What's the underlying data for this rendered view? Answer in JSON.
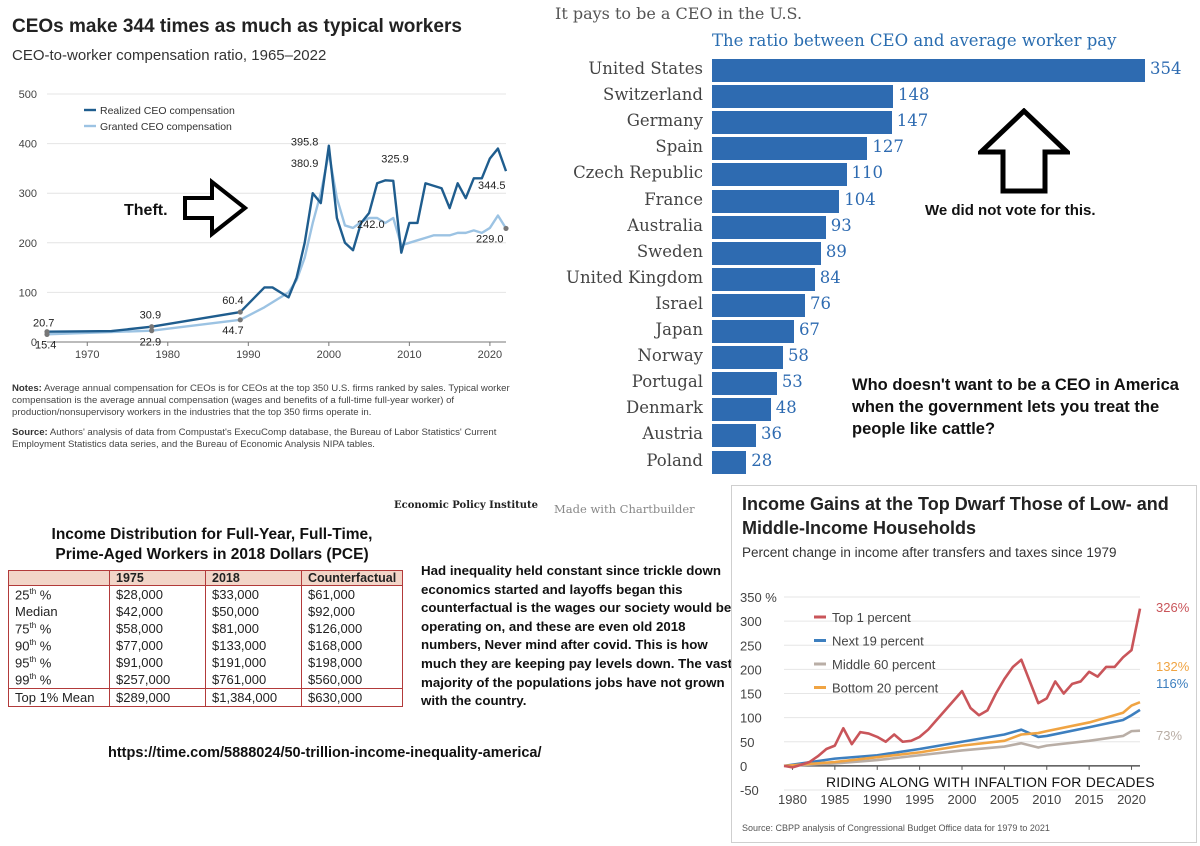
{
  "panel1": {
    "title": "CEOs make 344 times as much as typical workers",
    "subtitle": "CEO-to-worker compensation ratio, 1965–2022",
    "notes_label": "Notes:",
    "notes_text": "Average annual compensation for CEOs is for CEOs at the top 350 U.S. firms ranked by sales. Typical worker compensation is the average annual compensation (wages and benefits of a full-time full-year worker) of production/nonsupervisory workers in the industries that the top 350 firms operate in.",
    "source_label": "Source:",
    "source_text": "Authors' analysis of data from Compustat's ExecuComp database, the Bureau of Labor Statistics' Current Employment Statistics data series, and the Bureau of Economic Analysis NIPA tables.",
    "credit": "Economic Policy Institute",
    "annotation": "Theft.",
    "colors": {
      "realized": "#1f5d8e",
      "granted": "#9cc3e3"
    }
  },
  "panel2": {
    "supertitle": "It pays to be a CEO in the U.S.",
    "title": "The ratio between CEO and average worker pay",
    "credit": "Made with Chartbuilder",
    "note1": "We did not vote for this.",
    "note2": "Who doesn't want to be a CEO in America when the government lets you treat the people like cattle?",
    "bar_color": "#2e6bb1"
  },
  "panel3": {
    "title_line1": "Income Distribution for Full-Year, Full-Time,",
    "title_line2": "Prime-Aged Workers in 2018 Dollars (PCE)",
    "headers": [
      "",
      "1975",
      "2018",
      "Counterfactual"
    ],
    "rows": [
      {
        "label": "25th %",
        "v1975": "$28,000",
        "v2018": "$33,000",
        "cf": "$61,000"
      },
      {
        "label": "Median",
        "v1975": "$42,000",
        "v2018": "$50,000",
        "cf": "$92,000"
      },
      {
        "label": "75th %",
        "v1975": "$58,000",
        "v2018": "$81,000",
        "cf": "$126,000"
      },
      {
        "label": "90th %",
        "v1975": "$77,000",
        "v2018": "$133,000",
        "cf": "$168,000"
      },
      {
        "label": "95th %",
        "v1975": "$91,000",
        "v2018": "$191,000",
        "cf": "$198,000"
      },
      {
        "label": "99th %",
        "v1975": "$257,000",
        "v2018": "$761,000",
        "cf": "$560,000"
      },
      {
        "label": "Top 1% Mean",
        "v1975": "$289,000",
        "v2018": "$1,384,000",
        "cf": "$630,000"
      }
    ],
    "commentary": "Had inequality held constant since trickle down economics started and layoffs began this counterfactual is the wages our society would be operating on, and these are even old 2018 numbers, Never mind after covid. This is how much they are keeping pay levels down. The vast majority of the populations jobs have not grown with the country.",
    "link": "https://time.com/5888024/50-trillion-income-inequality-america/"
  },
  "panel4": {
    "title": "Income Gains at the Top Dwarf Those of Low- and Middle-Income Households",
    "subtitle": "Percent change in income after transfers and taxes since 1979",
    "source": "Source: CBPP analysis of Congressional Budget Office data for 1979 to 2021",
    "annotation": "RIDING ALONG WITH INFALTION FOR DECADES"
  },
  "chart_data": [
    {
      "type": "line",
      "title": "CEOs make 344 times as much as typical workers",
      "subtitle": "CEO-to-worker compensation ratio, 1965–2022",
      "xlim": [
        1965,
        2022
      ],
      "ylim": [
        0,
        500
      ],
      "x_ticks": [
        1970,
        1980,
        1990,
        2000,
        2010,
        2020
      ],
      "y_ticks": [
        0,
        100,
        200,
        300,
        400,
        500
      ],
      "series": [
        {
          "name": "Realized CEO compensation",
          "color": "#1f5d8e",
          "x": [
            1965,
            1973,
            1978,
            1989,
            1992,
            1993,
            1995,
            1996,
            1997,
            1998,
            1999,
            2000,
            2001,
            2002,
            2003,
            2004,
            2005,
            2006,
            2007,
            2008,
            2009,
            2010,
            2011,
            2012,
            2013,
            2014,
            2015,
            2016,
            2017,
            2018,
            2019,
            2020,
            2021,
            2022
          ],
          "y": [
            20.7,
            22,
            30.9,
            60.4,
            110,
            110,
            90,
            130,
            200,
            300,
            280,
            395.8,
            250,
            200,
            185,
            240,
            260,
            320,
            325.9,
            325,
            180,
            240,
            240,
            320,
            315,
            310,
            270,
            320,
            290,
            330,
            330,
            370,
            390,
            344.5
          ]
        },
        {
          "name": "Granted CEO compensation",
          "color": "#9cc3e3",
          "x": [
            1965,
            1978,
            1989,
            1992,
            1995,
            1996,
            1997,
            1998,
            1999,
            2000,
            2001,
            2002,
            2003,
            2004,
            2005,
            2006,
            2007,
            2008,
            2009,
            2010,
            2011,
            2012,
            2013,
            2014,
            2015,
            2016,
            2017,
            2018,
            2019,
            2020,
            2021,
            2022
          ],
          "y": [
            15.4,
            22.9,
            44.7,
            70,
            100,
            125,
            170,
            240,
            300,
            380.9,
            290,
            235,
            230,
            242,
            250,
            250,
            240,
            250,
            195,
            200,
            205,
            210,
            215,
            215,
            215,
            220,
            220,
            225,
            220,
            230,
            255,
            229.0
          ]
        }
      ],
      "labels": [
        {
          "x": 1965,
          "y": 20.7,
          "text": "20.7"
        },
        {
          "x": 1965,
          "y": 15.4,
          "text": "15.4"
        },
        {
          "x": 1978,
          "y": 30.9,
          "text": "30.9"
        },
        {
          "x": 1978,
          "y": 22.9,
          "text": "22.9"
        },
        {
          "x": 1989,
          "y": 60.4,
          "text": "60.4"
        },
        {
          "x": 1989,
          "y": 44.7,
          "text": "44.7"
        },
        {
          "x": 2000,
          "y": 395.8,
          "text": "395.8"
        },
        {
          "x": 2000,
          "y": 380.9,
          "text": "380.9"
        },
        {
          "x": 2007,
          "y": 325.9,
          "text": "325.9"
        },
        {
          "x": 2004,
          "y": 242.0,
          "text": "242.0"
        },
        {
          "x": 2022,
          "y": 344.5,
          "text": "344.5"
        },
        {
          "x": 2022,
          "y": 229.0,
          "text": "229.0"
        }
      ]
    },
    {
      "type": "bar",
      "orientation": "horizontal",
      "title": "The ratio between CEO and average worker pay",
      "categories": [
        "United States",
        "Switzerland",
        "Germany",
        "Spain",
        "Czech Republic",
        "France",
        "Australia",
        "Sweden",
        "United Kingdom",
        "Israel",
        "Japan",
        "Norway",
        "Portugal",
        "Denmark",
        "Austria",
        "Poland"
      ],
      "values": [
        354,
        148,
        147,
        127,
        110,
        104,
        93,
        89,
        84,
        76,
        67,
        58,
        53,
        48,
        36,
        28
      ]
    },
    {
      "type": "line",
      "title": "Income Gains at the Top Dwarf Those of Low- and Middle-Income Households",
      "xlim": [
        1979,
        2021
      ],
      "ylim": [
        -50,
        350
      ],
      "x_ticks": [
        1980,
        1985,
        1990,
        1995,
        2000,
        2005,
        2010,
        2015,
        2020
      ],
      "y_ticks": [
        -50,
        0,
        50,
        100,
        150,
        200,
        250,
        300,
        350
      ],
      "y_tick_labels": [
        "-50",
        "0",
        "50",
        "100",
        "150",
        "200",
        "250",
        "300",
        "350 %"
      ],
      "series": [
        {
          "name": "Top 1 percent",
          "color": "#c9555a",
          "end_label": "326%",
          "x": [
            1979,
            1980,
            1981,
            1982,
            1983,
            1984,
            1985,
            1986,
            1987,
            1988,
            1989,
            1990,
            1991,
            1992,
            1993,
            1994,
            1995,
            1996,
            1997,
            1998,
            1999,
            2000,
            2001,
            2002,
            2003,
            2004,
            2005,
            2006,
            2007,
            2008,
            2009,
            2010,
            2011,
            2012,
            2013,
            2014,
            2015,
            2016,
            2017,
            2018,
            2019,
            2020,
            2021
          ],
          "y": [
            0,
            -3,
            2,
            8,
            20,
            35,
            42,
            78,
            45,
            70,
            67,
            60,
            50,
            65,
            50,
            52,
            60,
            75,
            95,
            115,
            135,
            155,
            120,
            105,
            115,
            150,
            180,
            205,
            220,
            175,
            130,
            140,
            175,
            150,
            170,
            175,
            195,
            185,
            205,
            205,
            225,
            240,
            326
          ]
        },
        {
          "name": "Next 19 percent",
          "color": "#3d7fbf",
          "end_label": "116%",
          "x": [
            1979,
            1985,
            1990,
            1995,
            2000,
            2005,
            2007,
            2009,
            2010,
            2015,
            2019,
            2020,
            2021
          ],
          "y": [
            0,
            15,
            22,
            35,
            50,
            65,
            75,
            60,
            62,
            80,
            95,
            105,
            116
          ]
        },
        {
          "name": "Middle 60 percent",
          "color": "#b9aea6",
          "end_label": "73%",
          "x": [
            1979,
            1985,
            1990,
            1995,
            2000,
            2005,
            2007,
            2009,
            2010,
            2015,
            2019,
            2020,
            2021
          ],
          "y": [
            0,
            5,
            12,
            22,
            32,
            40,
            47,
            38,
            42,
            52,
            62,
            72,
            73
          ]
        },
        {
          "name": "Bottom 20 percent",
          "color": "#f0a443",
          "end_label": "132%",
          "x": [
            1979,
            1985,
            1990,
            1995,
            2000,
            2005,
            2007,
            2009,
            2010,
            2015,
            2019,
            2020,
            2021
          ],
          "y": [
            0,
            8,
            18,
            28,
            42,
            52,
            65,
            68,
            72,
            90,
            110,
            125,
            132
          ]
        }
      ]
    }
  ]
}
